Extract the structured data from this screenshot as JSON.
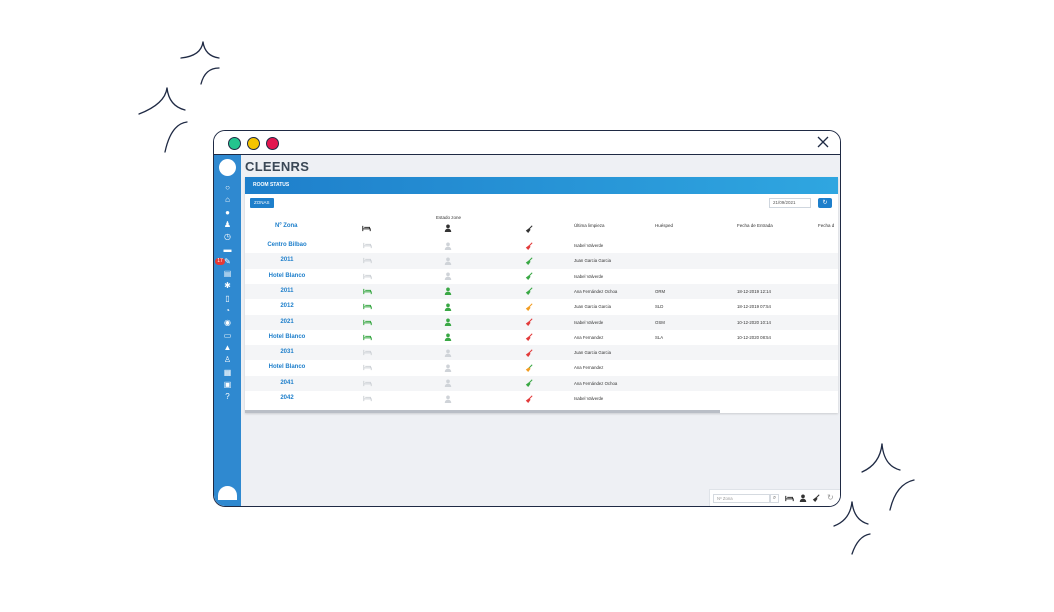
{
  "app": {
    "title": "CLEENRS"
  },
  "colors": {
    "accent": "#1e7fcb",
    "green": "#3aa845",
    "gray": "#cfd3d8",
    "red": "#e23b3b",
    "orange": "#f29d23",
    "traffic": [
      "#23c48e",
      "#f5c400",
      "#e2164f"
    ]
  },
  "sidebar": {
    "badge": "17",
    "icons": [
      "circle-icon",
      "home-icon",
      "bell-icon",
      "users-icon",
      "clock-icon",
      "briefcase-icon",
      "cleaning-icon",
      "id-card-icon",
      "gear-icon",
      "clipboard-icon",
      "pie-chart-icon",
      "chat-icon",
      "folder-icon",
      "graduation-icon",
      "user-settings-icon",
      "calendar-icon",
      "monitor-icon",
      "help-icon"
    ]
  },
  "panel": {
    "title": "ROOM STATUS",
    "zonas_label": "ZONAS",
    "date_value": "21/09/2021",
    "headers": {
      "zone": "Nº Zona",
      "estado": "Estado zone",
      "ultima": "Última limpieza",
      "huesped": "Huésped",
      "fecha": "Fecha de Entrada",
      "fecha_salida": "Fecha d"
    },
    "rows": [
      {
        "zone": "Centro Bilbao",
        "bed": "gray",
        "person": "gray",
        "broom": "red",
        "ultima": "Isabel Valverde",
        "huesped": "",
        "fecha": ""
      },
      {
        "zone": "2011",
        "bed": "gray",
        "person": "gray",
        "broom": "green",
        "ultima": "Juan Garcia Garcia",
        "huesped": "",
        "fecha": ""
      },
      {
        "zone": "Hotel Blanco",
        "bed": "gray",
        "person": "gray",
        "broom": "green",
        "ultima": "Isabel Valverde",
        "huesped": "",
        "fecha": ""
      },
      {
        "zone": "2011",
        "bed": "green",
        "person": "green",
        "broom": "green",
        "ultima": "Ana Fernández Ochoa",
        "huesped": "ORM",
        "fecha": "18-12-2019 12:14"
      },
      {
        "zone": "2012",
        "bed": "green",
        "person": "green",
        "broom": "orange",
        "ultima": "Juan Garcia Garcia",
        "huesped": "SLD",
        "fecha": "18-12-2019 07:54"
      },
      {
        "zone": "2021",
        "bed": "green",
        "person": "green",
        "broom": "red",
        "ultima": "Isabel Valverde",
        "huesped": "OSM",
        "fecha": "10-12-2020 10:14"
      },
      {
        "zone": "Hotel Blanco",
        "bed": "green",
        "person": "green",
        "broom": "red",
        "ultima": "Ana Fernandez",
        "huesped": "SLA",
        "fecha": "10-12-2020 08:54"
      },
      {
        "zone": "2031",
        "bed": "gray",
        "person": "gray",
        "broom": "red",
        "ultima": "Juan Garcia Garcia",
        "huesped": "",
        "fecha": ""
      },
      {
        "zone": "Hotel Blanco",
        "bed": "gray",
        "person": "gray",
        "broom": "multi",
        "ultima": "Ana Fernandez",
        "huesped": "",
        "fecha": ""
      },
      {
        "zone": "2041",
        "bed": "gray",
        "person": "gray",
        "broom": "green",
        "ultima": "Ana Fernández Ochoa",
        "huesped": "",
        "fecha": ""
      },
      {
        "zone": "2042",
        "bed": "gray",
        "person": "gray",
        "broom": "red",
        "ultima": "Isabel Valverde",
        "huesped": "",
        "fecha": ""
      }
    ]
  },
  "bottom_bar": {
    "placeholder": "Nº Zona"
  }
}
